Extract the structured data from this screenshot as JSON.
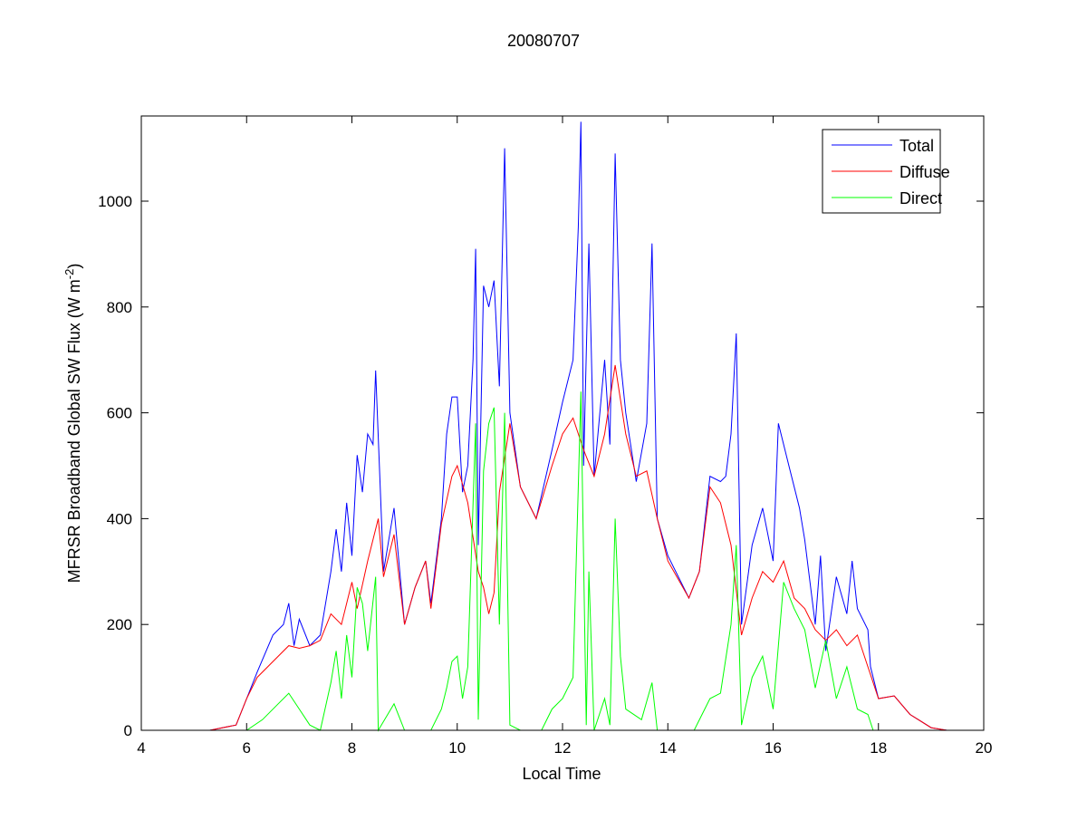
{
  "chart_data": {
    "type": "line",
    "title": "20080707",
    "xlabel": "Local Time",
    "ylabel": "MFRSR Broadband Global SW Flux (W m",
    "ylabel_sup": "-2",
    "ylabel_end": ")",
    "xlim": [
      4,
      20
    ],
    "ylim": [
      0,
      1160
    ],
    "xticks": [
      4,
      6,
      8,
      10,
      12,
      14,
      16,
      18,
      20
    ],
    "yticks": [
      0,
      200,
      400,
      600,
      800,
      1000
    ],
    "grid": false,
    "legend_position": "top-right",
    "series": [
      {
        "name": "Total",
        "color": "#0000ff",
        "points": [
          [
            5.3,
            0
          ],
          [
            5.8,
            10
          ],
          [
            6.0,
            60
          ],
          [
            6.2,
            110
          ],
          [
            6.5,
            180
          ],
          [
            6.7,
            200
          ],
          [
            6.8,
            240
          ],
          [
            6.9,
            160
          ],
          [
            7.0,
            210
          ],
          [
            7.2,
            160
          ],
          [
            7.4,
            180
          ],
          [
            7.6,
            300
          ],
          [
            7.7,
            380
          ],
          [
            7.8,
            300
          ],
          [
            7.9,
            430
          ],
          [
            8.0,
            330
          ],
          [
            8.1,
            520
          ],
          [
            8.2,
            450
          ],
          [
            8.3,
            560
          ],
          [
            8.4,
            540
          ],
          [
            8.45,
            680
          ],
          [
            8.6,
            300
          ],
          [
            8.8,
            420
          ],
          [
            9.0,
            200
          ],
          [
            9.2,
            270
          ],
          [
            9.4,
            320
          ],
          [
            9.5,
            240
          ],
          [
            9.7,
            400
          ],
          [
            9.8,
            560
          ],
          [
            9.9,
            630
          ],
          [
            10.0,
            630
          ],
          [
            10.1,
            450
          ],
          [
            10.2,
            500
          ],
          [
            10.3,
            700
          ],
          [
            10.35,
            910
          ],
          [
            10.4,
            350
          ],
          [
            10.5,
            840
          ],
          [
            10.6,
            800
          ],
          [
            10.7,
            850
          ],
          [
            10.8,
            650
          ],
          [
            10.9,
            1100
          ],
          [
            11.0,
            600
          ],
          [
            11.2,
            460
          ],
          [
            11.5,
            400
          ],
          [
            11.8,
            530
          ],
          [
            12.0,
            620
          ],
          [
            12.2,
            700
          ],
          [
            12.3,
            950
          ],
          [
            12.35,
            1150
          ],
          [
            12.4,
            500
          ],
          [
            12.5,
            920
          ],
          [
            12.6,
            480
          ],
          [
            12.8,
            700
          ],
          [
            12.9,
            540
          ],
          [
            13.0,
            1090
          ],
          [
            13.1,
            700
          ],
          [
            13.2,
            600
          ],
          [
            13.4,
            470
          ],
          [
            13.6,
            580
          ],
          [
            13.7,
            920
          ],
          [
            13.8,
            400
          ],
          [
            14.0,
            330
          ],
          [
            14.4,
            250
          ],
          [
            14.6,
            300
          ],
          [
            14.8,
            480
          ],
          [
            15.0,
            470
          ],
          [
            15.1,
            480
          ],
          [
            15.2,
            560
          ],
          [
            15.3,
            750
          ],
          [
            15.4,
            200
          ],
          [
            15.6,
            350
          ],
          [
            15.8,
            420
          ],
          [
            16.0,
            320
          ],
          [
            16.1,
            580
          ],
          [
            16.3,
            500
          ],
          [
            16.5,
            420
          ],
          [
            16.6,
            360
          ],
          [
            16.8,
            200
          ],
          [
            16.9,
            330
          ],
          [
            17.0,
            150
          ],
          [
            17.2,
            290
          ],
          [
            17.4,
            220
          ],
          [
            17.5,
            320
          ],
          [
            17.6,
            230
          ],
          [
            17.8,
            190
          ],
          [
            17.85,
            120
          ],
          [
            18.0,
            60
          ],
          [
            18.3,
            65
          ],
          [
            18.6,
            30
          ],
          [
            19.0,
            5
          ],
          [
            19.3,
            0
          ]
        ]
      },
      {
        "name": "Diffuse",
        "color": "#ff0000",
        "points": [
          [
            5.3,
            0
          ],
          [
            5.8,
            10
          ],
          [
            6.0,
            60
          ],
          [
            6.2,
            100
          ],
          [
            6.5,
            130
          ],
          [
            6.8,
            160
          ],
          [
            7.0,
            155
          ],
          [
            7.2,
            160
          ],
          [
            7.4,
            170
          ],
          [
            7.6,
            220
          ],
          [
            7.8,
            200
          ],
          [
            8.0,
            280
          ],
          [
            8.1,
            230
          ],
          [
            8.3,
            320
          ],
          [
            8.5,
            400
          ],
          [
            8.6,
            290
          ],
          [
            8.8,
            370
          ],
          [
            9.0,
            200
          ],
          [
            9.2,
            270
          ],
          [
            9.4,
            320
          ],
          [
            9.5,
            230
          ],
          [
            9.7,
            390
          ],
          [
            9.9,
            480
          ],
          [
            10.0,
            500
          ],
          [
            10.2,
            430
          ],
          [
            10.4,
            300
          ],
          [
            10.5,
            270
          ],
          [
            10.6,
            220
          ],
          [
            10.7,
            260
          ],
          [
            10.8,
            450
          ],
          [
            11.0,
            580
          ],
          [
            11.2,
            460
          ],
          [
            11.5,
            400
          ],
          [
            11.8,
            500
          ],
          [
            12.0,
            560
          ],
          [
            12.2,
            590
          ],
          [
            12.4,
            530
          ],
          [
            12.6,
            480
          ],
          [
            12.8,
            560
          ],
          [
            13.0,
            690
          ],
          [
            13.2,
            560
          ],
          [
            13.4,
            480
          ],
          [
            13.6,
            490
          ],
          [
            13.8,
            400
          ],
          [
            14.0,
            320
          ],
          [
            14.4,
            250
          ],
          [
            14.6,
            300
          ],
          [
            14.8,
            460
          ],
          [
            15.0,
            430
          ],
          [
            15.2,
            350
          ],
          [
            15.4,
            180
          ],
          [
            15.6,
            250
          ],
          [
            15.8,
            300
          ],
          [
            16.0,
            280
          ],
          [
            16.2,
            320
          ],
          [
            16.4,
            250
          ],
          [
            16.6,
            230
          ],
          [
            16.8,
            190
          ],
          [
            17.0,
            170
          ],
          [
            17.2,
            190
          ],
          [
            17.4,
            160
          ],
          [
            17.6,
            180
          ],
          [
            17.8,
            120
          ],
          [
            18.0,
            60
          ],
          [
            18.3,
            65
          ],
          [
            18.6,
            30
          ],
          [
            19.0,
            5
          ],
          [
            19.3,
            0
          ]
        ]
      },
      {
        "name": "Direct",
        "color": "#00ff00",
        "points": [
          [
            5.3,
            0
          ],
          [
            6.0,
            0
          ],
          [
            6.3,
            20
          ],
          [
            6.6,
            50
          ],
          [
            6.8,
            70
          ],
          [
            7.0,
            40
          ],
          [
            7.2,
            10
          ],
          [
            7.4,
            0
          ],
          [
            7.6,
            90
          ],
          [
            7.7,
            150
          ],
          [
            7.8,
            60
          ],
          [
            7.9,
            180
          ],
          [
            8.0,
            100
          ],
          [
            8.1,
            270
          ],
          [
            8.2,
            240
          ],
          [
            8.3,
            150
          ],
          [
            8.45,
            290
          ],
          [
            8.5,
            0
          ],
          [
            8.8,
            50
          ],
          [
            9.0,
            0
          ],
          [
            9.5,
            0
          ],
          [
            9.7,
            40
          ],
          [
            9.8,
            80
          ],
          [
            9.9,
            130
          ],
          [
            10.0,
            140
          ],
          [
            10.1,
            60
          ],
          [
            10.2,
            120
          ],
          [
            10.35,
            580
          ],
          [
            10.4,
            20
          ],
          [
            10.5,
            490
          ],
          [
            10.6,
            580
          ],
          [
            10.7,
            610
          ],
          [
            10.8,
            200
          ],
          [
            10.9,
            600
          ],
          [
            11.0,
            10
          ],
          [
            11.2,
            0
          ],
          [
            11.6,
            0
          ],
          [
            11.8,
            40
          ],
          [
            12.0,
            60
          ],
          [
            12.2,
            100
          ],
          [
            12.35,
            640
          ],
          [
            12.45,
            10
          ],
          [
            12.5,
            300
          ],
          [
            12.6,
            0
          ],
          [
            12.8,
            60
          ],
          [
            12.9,
            10
          ],
          [
            13.0,
            400
          ],
          [
            13.1,
            140
          ],
          [
            13.2,
            40
          ],
          [
            13.5,
            20
          ],
          [
            13.7,
            90
          ],
          [
            13.8,
            0
          ],
          [
            14.0,
            0
          ],
          [
            14.5,
            0
          ],
          [
            14.8,
            60
          ],
          [
            15.0,
            70
          ],
          [
            15.2,
            200
          ],
          [
            15.3,
            350
          ],
          [
            15.4,
            10
          ],
          [
            15.6,
            100
          ],
          [
            15.8,
            140
          ],
          [
            16.0,
            40
          ],
          [
            16.2,
            280
          ],
          [
            16.4,
            230
          ],
          [
            16.6,
            190
          ],
          [
            16.8,
            80
          ],
          [
            17.0,
            170
          ],
          [
            17.2,
            60
          ],
          [
            17.4,
            120
          ],
          [
            17.6,
            40
          ],
          [
            17.8,
            30
          ],
          [
            17.9,
            0
          ],
          [
            19.3,
            0
          ]
        ]
      }
    ]
  }
}
